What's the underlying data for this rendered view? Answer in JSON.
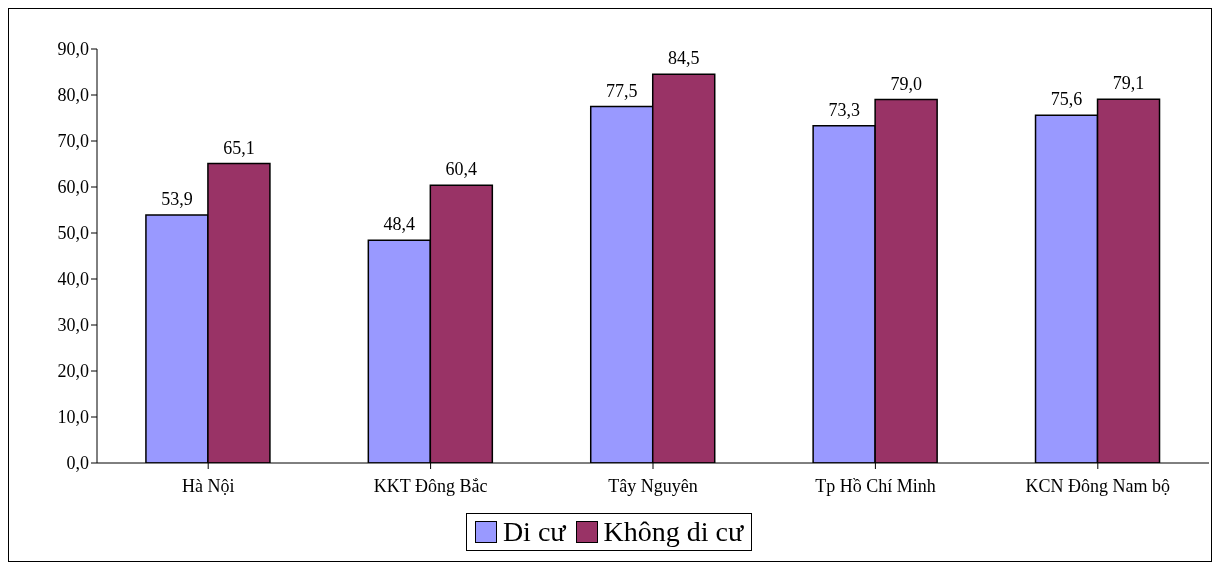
{
  "chart_data": {
    "type": "bar",
    "categories": [
      "Hà Nội",
      "KKT Đông Bắc",
      "Tây Nguyên",
      "Tp Hồ Chí Minh",
      "KCN Đông Nam bộ"
    ],
    "series": [
      {
        "name": "Di cư",
        "color": "#9999ff",
        "values": [
          53.9,
          48.4,
          77.5,
          73.3,
          75.6
        ],
        "value_labels": [
          "53,9",
          "48,4",
          "77,5",
          "73,3",
          "75,6"
        ]
      },
      {
        "name": "Không di cư",
        "color": "#993366",
        "values": [
          65.1,
          60.4,
          84.5,
          79.0,
          79.1
        ],
        "value_labels": [
          "65,1",
          "60,4",
          "84,5",
          "79,0",
          "79,1"
        ]
      }
    ],
    "ylim": [
      0,
      90
    ],
    "yticks": [
      {
        "value": 0,
        "label": "0,0"
      },
      {
        "value": 10,
        "label": "10,0"
      },
      {
        "value": 20,
        "label": "20,0"
      },
      {
        "value": 30,
        "label": "30,0"
      },
      {
        "value": 40,
        "label": "40,0"
      },
      {
        "value": 50,
        "label": "50,0"
      },
      {
        "value": 60,
        "label": "60,0"
      },
      {
        "value": 70,
        "label": "70,0"
      },
      {
        "value": 80,
        "label": "80,0"
      },
      {
        "value": 90,
        "label": "90,0"
      }
    ],
    "grid": false,
    "legend": "bottom"
  }
}
